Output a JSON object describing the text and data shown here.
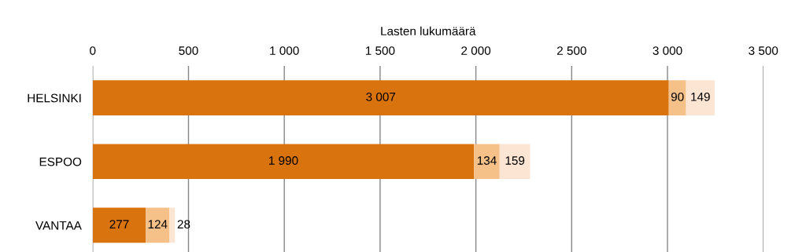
{
  "chart_data": {
    "type": "bar",
    "orientation": "horizontal",
    "stacked": true,
    "xlabel": "Lasten lukumäärä",
    "categories": [
      "HELSINKI",
      "ESPOO",
      "VANTAA"
    ],
    "series": [
      {
        "color": "#d9730d",
        "values": [
          3007,
          1990,
          277
        ],
        "value_labels": [
          "3 007",
          "1 990",
          "277"
        ]
      },
      {
        "color": "#f6c189",
        "values": [
          90,
          134,
          124
        ],
        "value_labels": [
          "90",
          "134",
          "124"
        ]
      },
      {
        "color": "#fce5d3",
        "values": [
          149,
          159,
          28
        ],
        "value_labels": [
          "149",
          "159",
          "28"
        ]
      }
    ],
    "xlim": [
      0,
      3500
    ],
    "xticks": [
      0,
      500,
      {
        "value": 1000,
        "label": "1 000"
      },
      {
        "value": 1500,
        "label": "1 500"
      },
      {
        "value": 2000,
        "label": "2 000"
      },
      {
        "value": 2500,
        "label": "2 500"
      },
      {
        "value": 3000,
        "label": "3 000"
      },
      {
        "value": 3500,
        "label": "3 500"
      }
    ],
    "grid": "x",
    "legend": false
  }
}
